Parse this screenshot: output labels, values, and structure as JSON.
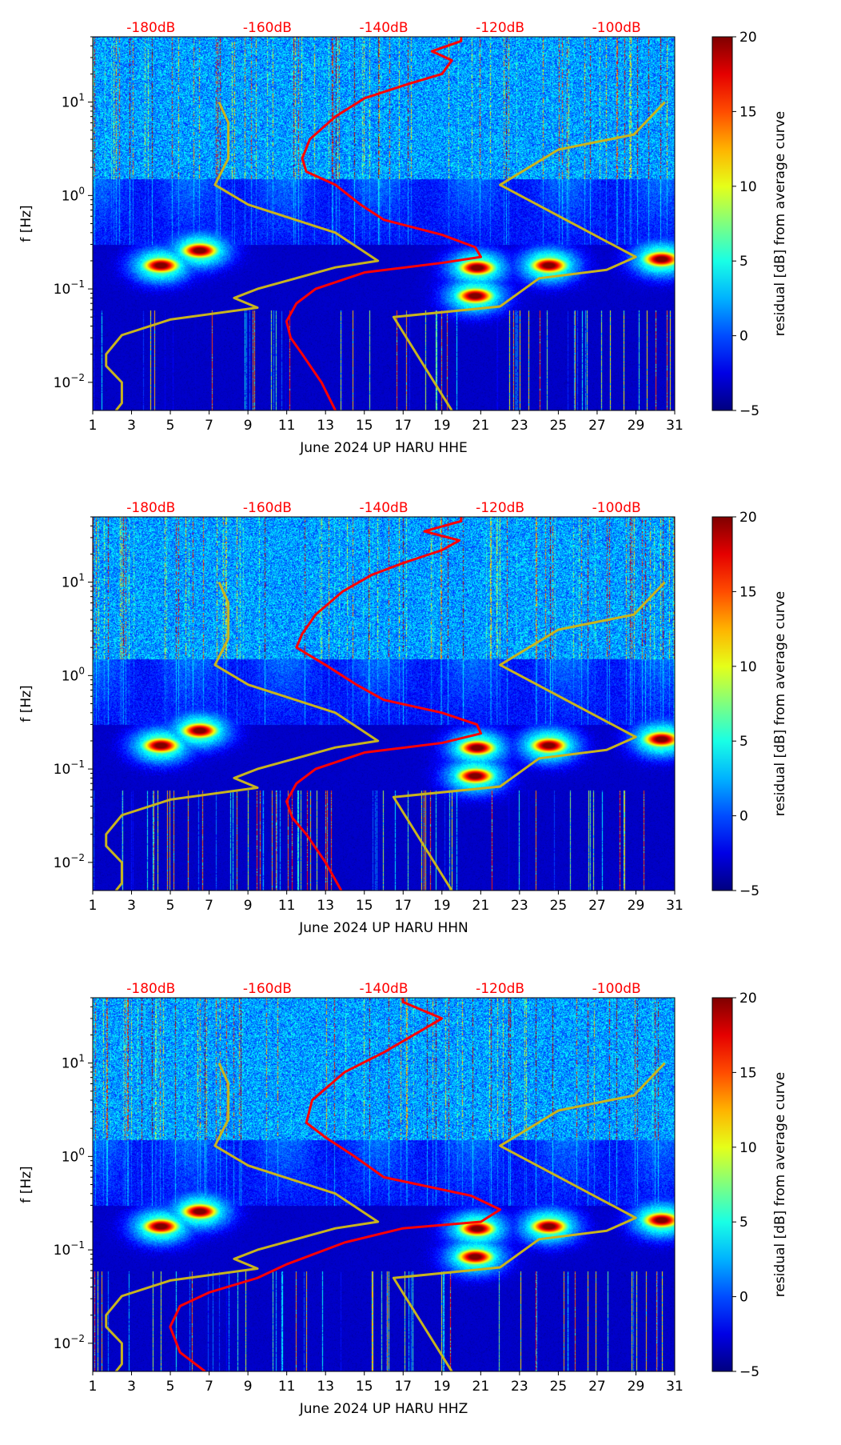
{
  "chart_data": [
    {
      "type": "heatmap",
      "channel": "HHE",
      "xlabel": "June 2024 UP HARU  HHE",
      "ylabel": "f [Hz]",
      "colorbar_label": "residual [dB] from average curve",
      "xlim": [
        1,
        31
      ],
      "xticks": [
        1,
        3,
        5,
        7,
        9,
        11,
        13,
        15,
        17,
        19,
        21,
        23,
        25,
        27,
        29,
        31
      ],
      "ylim": [
        0.005,
        50
      ],
      "yscale": "log",
      "yticks": [
        {
          "v": 0.01,
          "b": "10",
          "e": "−2"
        },
        {
          "v": 0.1,
          "b": "10",
          "e": "−1"
        },
        {
          "v": 1,
          "b": "10",
          "e": "0"
        },
        {
          "v": 10,
          "b": "10",
          "e": "1"
        }
      ],
      "top_axis": {
        "labels": [
          "-180dB",
          "-160dB",
          "-140dB",
          "-120dB",
          "-100dB"
        ],
        "values_db": [
          -180,
          -160,
          -140,
          -120,
          -100
        ],
        "db_range": [
          -190,
          -90
        ],
        "color": "#ff0000"
      },
      "clim": [
        -5,
        20
      ],
      "cticks": [
        "20",
        "15",
        "10",
        "5",
        "0",
        "−5"
      ],
      "nlnm_db_hz": [
        [
          -168.3,
          10
        ],
        [
          -166.7,
          6
        ],
        [
          -166.7,
          2.5
        ],
        [
          -169,
          1.3
        ],
        [
          -163.3,
          0.8
        ],
        [
          -148.3,
          0.4
        ],
        [
          -141,
          0.2
        ],
        [
          -148.3,
          0.17
        ],
        [
          -161.7,
          0.1
        ],
        [
          -165.7,
          0.08
        ],
        [
          -161.7,
          0.063
        ],
        [
          -176.7,
          0.047
        ],
        [
          -185,
          0.032
        ],
        [
          -187.7,
          0.02
        ],
        [
          -187.7,
          0.015
        ],
        [
          -185,
          0.01
        ],
        [
          -185,
          0.006
        ],
        [
          -186,
          0.005
        ]
      ],
      "nhnm_db_hz": [
        [
          -91.7,
          10
        ],
        [
          -97,
          4.5
        ],
        [
          -110,
          3.1
        ],
        [
          -120,
          1.3
        ],
        [
          -96.7,
          0.22
        ],
        [
          -101.7,
          0.16
        ],
        [
          -113.3,
          0.13
        ],
        [
          -120,
          0.065
        ],
        [
          -138.3,
          0.05
        ],
        [
          -128.3,
          0.005
        ]
      ],
      "mean_psd_db_hz": [
        [
          -148.3,
          0.005
        ],
        [
          -150.7,
          0.01
        ],
        [
          -154,
          0.02
        ],
        [
          -156,
          0.03
        ],
        [
          -156.7,
          0.045
        ],
        [
          -155,
          0.07
        ],
        [
          -151.7,
          0.1
        ],
        [
          -143.3,
          0.15
        ],
        [
          -130,
          0.19
        ],
        [
          -123.3,
          0.22
        ],
        [
          -124.3,
          0.28
        ],
        [
          -130,
          0.38
        ],
        [
          -140,
          0.55
        ],
        [
          -144,
          0.8
        ],
        [
          -148.3,
          1.3
        ],
        [
          -153.3,
          1.8
        ],
        [
          -154,
          2.5
        ],
        [
          -152.7,
          4
        ],
        [
          -148.3,
          7
        ],
        [
          -143.3,
          11
        ],
        [
          -136.7,
          15
        ],
        [
          -130,
          20
        ],
        [
          -128.3,
          28
        ],
        [
          -131.7,
          35
        ],
        [
          -126.7,
          45
        ],
        [
          -126.7,
          50
        ]
      ],
      "hot_spots": [
        [
          4.5,
          0.18
        ],
        [
          20.8,
          0.17
        ],
        [
          24.5,
          0.18
        ],
        [
          30.3,
          0.21
        ],
        [
          6.5,
          0.26
        ],
        [
          20.7,
          0.085
        ]
      ]
    },
    {
      "type": "heatmap",
      "channel": "HHN",
      "xlabel": "June 2024 UP HARU  HHN",
      "ylabel": "f [Hz]",
      "colorbar_label": "residual [dB] from average curve",
      "xlim": [
        1,
        31
      ],
      "xticks": [
        1,
        3,
        5,
        7,
        9,
        11,
        13,
        15,
        17,
        19,
        21,
        23,
        25,
        27,
        29,
        31
      ],
      "ylim": [
        0.005,
        50
      ],
      "yscale": "log",
      "yticks": [
        {
          "v": 0.01,
          "b": "10",
          "e": "−2"
        },
        {
          "v": 0.1,
          "b": "10",
          "e": "−1"
        },
        {
          "v": 1,
          "b": "10",
          "e": "0"
        },
        {
          "v": 10,
          "b": "10",
          "e": "1"
        }
      ],
      "top_axis": {
        "labels": [
          "-180dB",
          "-160dB",
          "-140dB",
          "-120dB",
          "-100dB"
        ],
        "values_db": [
          -180,
          -160,
          -140,
          -120,
          -100
        ],
        "db_range": [
          -190,
          -90
        ],
        "color": "#ff0000"
      },
      "clim": [
        -5,
        20
      ],
      "cticks": [
        "20",
        "15",
        "10",
        "5",
        "0",
        "−5"
      ],
      "nlnm_db_hz": [
        [
          -168.3,
          10
        ],
        [
          -166.7,
          6
        ],
        [
          -166.7,
          2.5
        ],
        [
          -169,
          1.3
        ],
        [
          -163.3,
          0.8
        ],
        [
          -148.3,
          0.4
        ],
        [
          -141,
          0.2
        ],
        [
          -148.3,
          0.17
        ],
        [
          -161.7,
          0.1
        ],
        [
          -165.7,
          0.08
        ],
        [
          -161.7,
          0.063
        ],
        [
          -176.7,
          0.047
        ],
        [
          -185,
          0.032
        ],
        [
          -187.7,
          0.02
        ],
        [
          -187.7,
          0.015
        ],
        [
          -185,
          0.01
        ],
        [
          -185,
          0.006
        ],
        [
          -186,
          0.005
        ]
      ],
      "nhnm_db_hz": [
        [
          -91.7,
          10
        ],
        [
          -97,
          4.5
        ],
        [
          -110,
          3.1
        ],
        [
          -120,
          1.3
        ],
        [
          -96.7,
          0.22
        ],
        [
          -101.7,
          0.16
        ],
        [
          -113.3,
          0.13
        ],
        [
          -120,
          0.065
        ],
        [
          -138.3,
          0.05
        ],
        [
          -128.3,
          0.005
        ]
      ],
      "mean_psd_db_hz": [
        [
          -147.3,
          0.005
        ],
        [
          -150,
          0.01
        ],
        [
          -153.3,
          0.02
        ],
        [
          -155.7,
          0.03
        ],
        [
          -156.7,
          0.045
        ],
        [
          -155,
          0.07
        ],
        [
          -151.7,
          0.1
        ],
        [
          -143.3,
          0.15
        ],
        [
          -130,
          0.19
        ],
        [
          -123.3,
          0.24
        ],
        [
          -124,
          0.3
        ],
        [
          -130,
          0.4
        ],
        [
          -140,
          0.55
        ],
        [
          -144.7,
          0.8
        ],
        [
          -150,
          1.3
        ],
        [
          -155,
          2
        ],
        [
          -154,
          2.8
        ],
        [
          -151.7,
          4.5
        ],
        [
          -147,
          8
        ],
        [
          -142,
          12
        ],
        [
          -136.7,
          16
        ],
        [
          -130,
          22
        ],
        [
          -127,
          28
        ],
        [
          -133,
          35
        ],
        [
          -126.7,
          45
        ],
        [
          -126.7,
          50
        ]
      ],
      "hot_spots": [
        [
          4.5,
          0.18
        ],
        [
          20.8,
          0.17
        ],
        [
          24.5,
          0.18
        ],
        [
          30.3,
          0.21
        ],
        [
          6.5,
          0.26
        ],
        [
          20.7,
          0.085
        ]
      ]
    },
    {
      "type": "heatmap",
      "channel": "HHZ",
      "xlabel": "June 2024 UP HARU  HHZ",
      "ylabel": "f [Hz]",
      "colorbar_label": "residual [dB] from average curve",
      "xlim": [
        1,
        31
      ],
      "xticks": [
        1,
        3,
        5,
        7,
        9,
        11,
        13,
        15,
        17,
        19,
        21,
        23,
        25,
        27,
        29,
        31
      ],
      "ylim": [
        0.005,
        50
      ],
      "yscale": "log",
      "yticks": [
        {
          "v": 0.01,
          "b": "10",
          "e": "−2"
        },
        {
          "v": 0.1,
          "b": "10",
          "e": "−1"
        },
        {
          "v": 1,
          "b": "10",
          "e": "0"
        },
        {
          "v": 10,
          "b": "10",
          "e": "1"
        }
      ],
      "top_axis": {
        "labels": [
          "-180dB",
          "-160dB",
          "-140dB",
          "-120dB",
          "-100dB"
        ],
        "values_db": [
          -180,
          -160,
          -140,
          -120,
          -100
        ],
        "db_range": [
          -190,
          -90
        ],
        "color": "#ff0000"
      },
      "clim": [
        -5,
        20
      ],
      "cticks": [
        "20",
        "15",
        "10",
        "5",
        "0",
        "−5"
      ],
      "nlnm_db_hz": [
        [
          -168.3,
          10
        ],
        [
          -166.7,
          6
        ],
        [
          -166.7,
          2.5
        ],
        [
          -169,
          1.3
        ],
        [
          -163.3,
          0.8
        ],
        [
          -148.3,
          0.4
        ],
        [
          -141,
          0.2
        ],
        [
          -148.3,
          0.17
        ],
        [
          -161.7,
          0.1
        ],
        [
          -165.7,
          0.08
        ],
        [
          -161.7,
          0.063
        ],
        [
          -176.7,
          0.047
        ],
        [
          -185,
          0.032
        ],
        [
          -187.7,
          0.02
        ],
        [
          -187.7,
          0.015
        ],
        [
          -185,
          0.01
        ],
        [
          -185,
          0.006
        ],
        [
          -186,
          0.005
        ]
      ],
      "nhnm_db_hz": [
        [
          -91.7,
          10
        ],
        [
          -97,
          4.5
        ],
        [
          -110,
          3.1
        ],
        [
          -120,
          1.3
        ],
        [
          -96.7,
          0.22
        ],
        [
          -101.7,
          0.16
        ],
        [
          -113.3,
          0.13
        ],
        [
          -120,
          0.065
        ],
        [
          -138.3,
          0.05
        ],
        [
          -128.3,
          0.005
        ]
      ],
      "mean_psd_db_hz": [
        [
          -170.7,
          0.005
        ],
        [
          -175,
          0.008
        ],
        [
          -176.7,
          0.015
        ],
        [
          -175,
          0.025
        ],
        [
          -170,
          0.035
        ],
        [
          -161.7,
          0.05
        ],
        [
          -156.7,
          0.07
        ],
        [
          -146.7,
          0.12
        ],
        [
          -136.7,
          0.17
        ],
        [
          -123.3,
          0.2
        ],
        [
          -120,
          0.27
        ],
        [
          -125,
          0.38
        ],
        [
          -140,
          0.6
        ],
        [
          -145,
          1
        ],
        [
          -150,
          1.6
        ],
        [
          -153.3,
          2.3
        ],
        [
          -152.3,
          4
        ],
        [
          -146.7,
          8
        ],
        [
          -140,
          13
        ],
        [
          -130,
          30
        ],
        [
          -136.7,
          45
        ],
        [
          -136.7,
          50
        ]
      ],
      "hot_spots": [
        [
          4.5,
          0.18
        ],
        [
          20.8,
          0.17
        ],
        [
          24.5,
          0.18
        ],
        [
          30.3,
          0.21
        ],
        [
          6.5,
          0.26
        ],
        [
          20.7,
          0.085
        ]
      ]
    }
  ]
}
